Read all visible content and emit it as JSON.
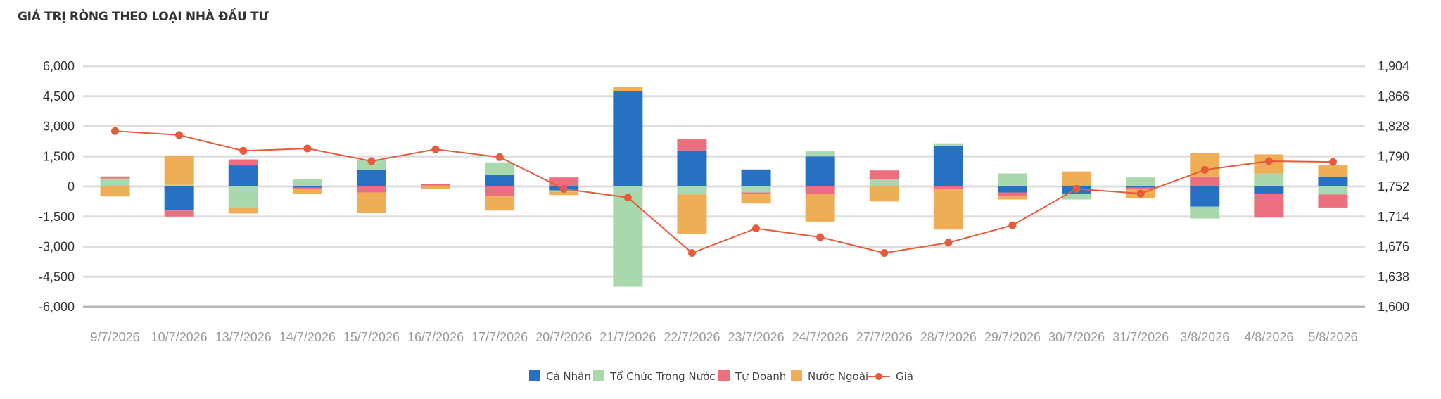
{
  "title": "GIÁ TRỊ RÒNG THEO LOẠI NHÀ ĐẦU TƯ",
  "chart_data": {
    "type": "bar",
    "stacked": true,
    "categories": [
      "9/7/2026",
      "10/7/2026",
      "13/7/2026",
      "14/7/2026",
      "15/7/2026",
      "16/7/2026",
      "17/7/2026",
      "20/7/2026",
      "21/7/2026",
      "22/7/2026",
      "23/7/2026",
      "24/7/2026",
      "27/7/2026",
      "28/7/2026",
      "29/7/2026",
      "30/7/2026",
      "31/7/2026",
      "3/8/2026",
      "4/8/2026",
      "5/8/2026"
    ],
    "series": [
      {
        "name": "Cá Nhân",
        "color": "#2771c4",
        "values": [
          0,
          -1200,
          1050,
          -50,
          850,
          0,
          600,
          -200,
          4750,
          1800,
          850,
          1500,
          0,
          2000,
          -300,
          -350,
          -50,
          -1000,
          -350,
          500
        ]
      },
      {
        "name": "Tổ Chức Trong Nước",
        "color": "#a8d8ab",
        "values": [
          400,
          80,
          -1050,
          380,
          450,
          40,
          600,
          -80,
          -5000,
          -400,
          -300,
          250,
          350,
          150,
          650,
          -300,
          450,
          -600,
          650,
          -400
        ]
      },
      {
        "name": "Tự Doanh",
        "color": "#ec6f7e",
        "values": [
          100,
          -300,
          300,
          -100,
          -300,
          100,
          -500,
          450,
          0,
          550,
          -50,
          -400,
          450,
          -150,
          -200,
          50,
          -100,
          500,
          -1200,
          -650
        ]
      },
      {
        "name": "Nước Ngoài",
        "color": "#efae56",
        "values": [
          -500,
          1450,
          -300,
          -200,
          -1000,
          -120,
          -700,
          -150,
          200,
          -1950,
          -500,
          -1350,
          -750,
          -2000,
          -150,
          700,
          -450,
          1150,
          950,
          550
        ]
      }
    ],
    "line": {
      "name": "Giá",
      "color": "#e55b3c",
      "values": [
        1822,
        1817,
        1797,
        1800,
        1784,
        1799,
        1789,
        1749,
        1738,
        1668,
        1699,
        1688,
        1668,
        1681,
        1703,
        1749,
        1743,
        1773,
        1784,
        1783
      ]
    },
    "left_axis": {
      "min": -6000,
      "max": 6000,
      "ticks": [
        "6,000",
        "4,500",
        "3,000",
        "1,500",
        "0",
        "-1,500",
        "-3,000",
        "-4,500",
        "-6,000"
      ]
    },
    "right_axis": {
      "min": 1600,
      "max": 1904,
      "ticks": [
        "1,904",
        "1,866",
        "1,828",
        "1,790",
        "1,752",
        "1,714",
        "1,676",
        "1,638",
        "1,600"
      ]
    },
    "legend": {
      "position": "bottom",
      "items": [
        "Cá Nhân",
        "Tổ Chức Trong Nước",
        "Tự Doanh",
        "Nước Ngoài",
        "Giá"
      ]
    },
    "grid": true
  }
}
